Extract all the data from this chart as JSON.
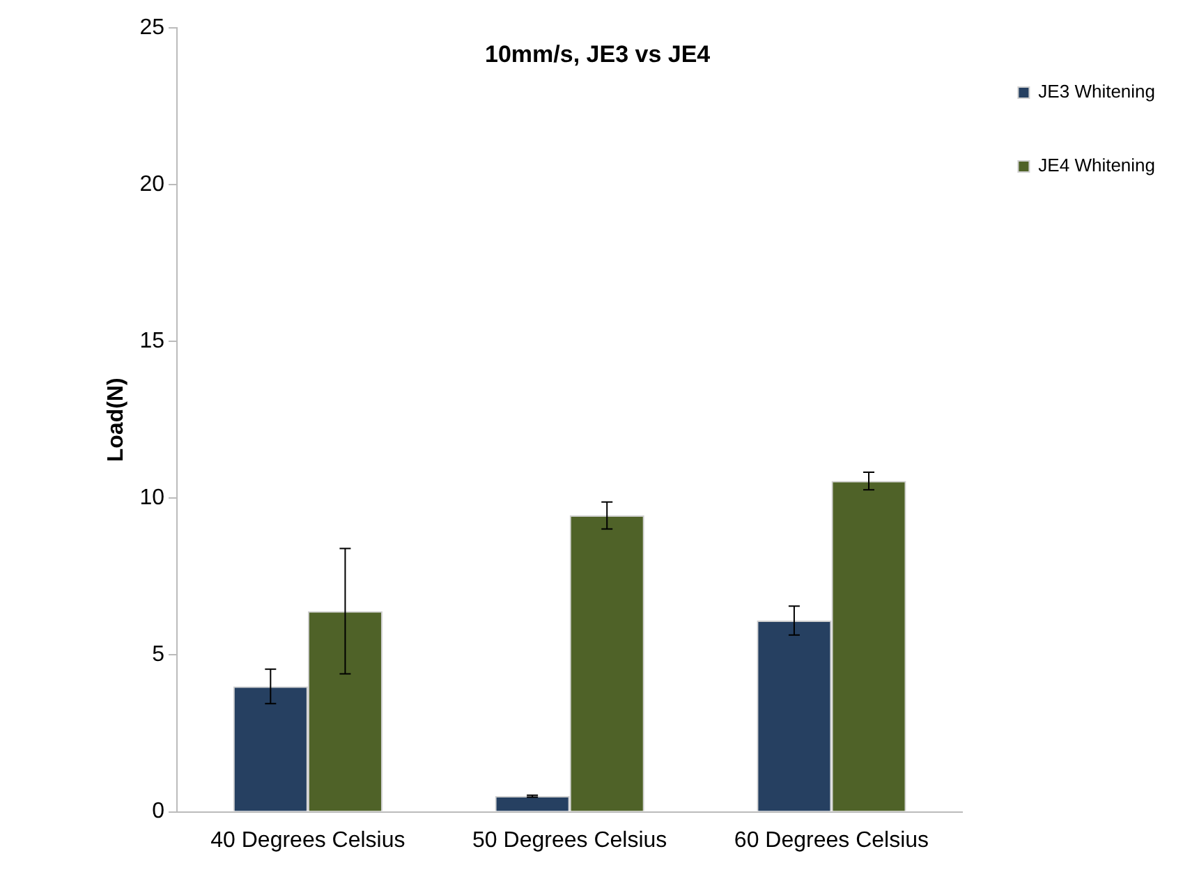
{
  "chart_data": {
    "type": "bar",
    "title": "10mm/s, JE3 vs JE4",
    "ylabel": "Load(N)",
    "categories": [
      "40 Degrees Celsius",
      "50 Degrees Celsius",
      "60 Degrees Celsius"
    ],
    "series": [
      {
        "name": "JE3 Whitening",
        "color": "#264061",
        "values": [
          4.0,
          0.5,
          6.1
        ],
        "errors": [
          0.55,
          0.03,
          0.46
        ]
      },
      {
        "name": "JE4 Whitening",
        "color": "#4f6228",
        "values": [
          6.4,
          9.45,
          10.55
        ],
        "errors": [
          2.0,
          0.43,
          0.28
        ]
      }
    ],
    "ylim": [
      0,
      25
    ],
    "yticks": [
      0,
      5,
      10,
      15,
      20,
      25
    ],
    "grid": false,
    "legend": "top right"
  }
}
